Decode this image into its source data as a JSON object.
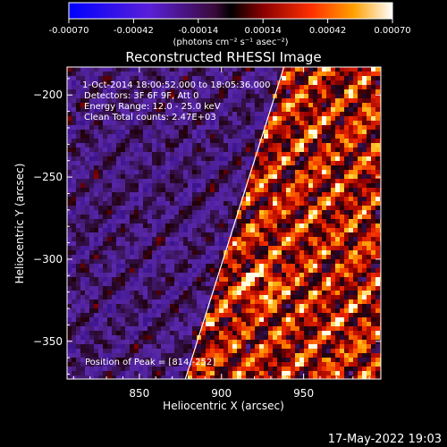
{
  "colorbar": {
    "ticks": [
      "-0.00070",
      "-0.00042",
      "-0.00014",
      "0.00014",
      "0.00042",
      "0.00070"
    ],
    "unit_label": "(photons cm⁻² s⁻¹ asec⁻²)",
    "range": [
      -0.0007,
      0.0007
    ]
  },
  "chart_data": {
    "type": "heatmap",
    "title": "Reconstructed RHESSI Image",
    "xlabel": "Heliocentric X (arcsec)",
    "ylabel": "Heliocentric Y (arcsec)",
    "xlim": [
      806,
      997
    ],
    "ylim": [
      -373,
      -183
    ],
    "x_ticks": [
      850,
      900,
      950
    ],
    "y_ticks": [
      -200,
      -250,
      -300,
      -350
    ],
    "x_tick_labels": [
      "850",
      "900",
      "950"
    ],
    "y_tick_labels": [
      "−200",
      "−250",
      "−300",
      "−350"
    ],
    "limb_line": [
      [
        878,
        -373
      ],
      [
        938,
        -183
      ]
    ],
    "annotations": {
      "date_range": "1-Oct-2014 18:00:52.000 to 18:05:36.000",
      "detectors": "Detectors: 3F 6F 9F, Att 0",
      "energy": "Energy Range: 12.0 - 25.0 keV",
      "clean": "Clean    Total counts: 2.47E+03",
      "peak": "Position of Peak = [814,-252]"
    },
    "peak_position": [
      814,
      -252
    ]
  },
  "footer": {
    "timestamp": "17-May-2022 19:03"
  }
}
